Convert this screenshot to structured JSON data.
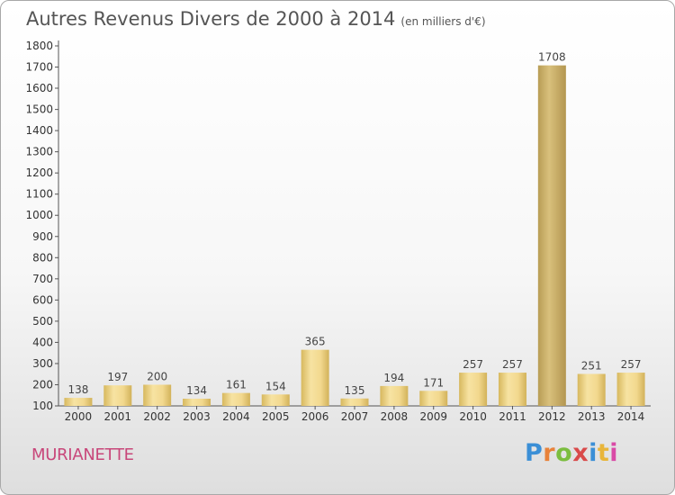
{
  "chart_data": {
    "type": "bar",
    "title": "Autres Revenus Divers de 2000 à 2014",
    "subtitle": "(en milliers d'€)",
    "categories": [
      "2000",
      "2001",
      "2002",
      "2003",
      "2004",
      "2005",
      "2006",
      "2007",
      "2008",
      "2009",
      "2010",
      "2011",
      "2012",
      "2013",
      "2014"
    ],
    "values": [
      138,
      197,
      200,
      134,
      161,
      154,
      365,
      135,
      194,
      171,
      257,
      257,
      1708,
      251,
      257
    ],
    "ylim": [
      100,
      1800
    ],
    "yticks": [
      100,
      200,
      300,
      400,
      500,
      600,
      700,
      800,
      900,
      1000,
      1100,
      1200,
      1300,
      1400,
      1500,
      1600,
      1700,
      1800
    ],
    "grid": false,
    "bar_color": "#f0d68c",
    "highlight_color": "#c9b06c"
  },
  "footer": {
    "commune": "MURIANETTE",
    "logo": "Proxiti",
    "logo_colors": [
      "#3b8fd6",
      "#e8823a",
      "#7bbd3f",
      "#d94a4a",
      "#3b8fd6",
      "#e8b53a",
      "#d94aa6"
    ]
  }
}
